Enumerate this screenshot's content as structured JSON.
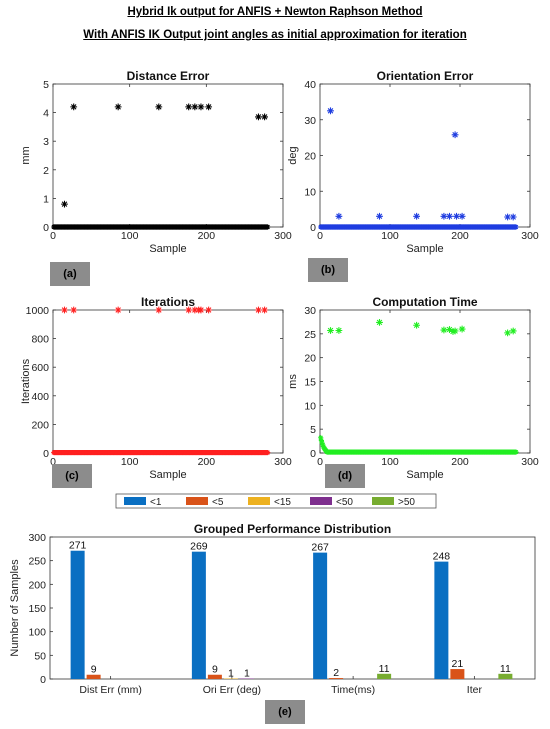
{
  "header": {
    "line1": "Hybrid Ik output for ANFIS + Newton Raphson Method",
    "line2": "With ANFIS IK Output joint angles as initial approximation for iteration"
  },
  "panel_tags": [
    "(a)",
    "(b)",
    "(c)",
    "(d)",
    "(e)"
  ],
  "chart_data": [
    {
      "type": "scatter",
      "title": "Distance Error",
      "xlabel": "Sample",
      "ylabel": "mm",
      "xlim": [
        0,
        300
      ],
      "ylim": [
        0,
        5
      ],
      "xticks": [
        0,
        100,
        200,
        300
      ],
      "yticks": [
        0,
        1,
        2,
        3,
        4,
        5
      ],
      "color": "#000000",
      "baseline": 0.0,
      "baseline_x_range": [
        1,
        280
      ],
      "outliers": [
        [
          15,
          0.8
        ],
        [
          27,
          4.2
        ],
        [
          85,
          4.2
        ],
        [
          138,
          4.2
        ],
        [
          177,
          4.2
        ],
        [
          185,
          4.2
        ],
        [
          193,
          4.2
        ],
        [
          203,
          4.2
        ],
        [
          268,
          3.85
        ],
        [
          276,
          3.85
        ]
      ]
    },
    {
      "type": "scatter",
      "title": "Orientation Error",
      "xlabel": "Sample",
      "ylabel": "deg",
      "xlim": [
        0,
        300
      ],
      "ylim": [
        0,
        40
      ],
      "xticks": [
        0,
        100,
        200,
        300
      ],
      "yticks": [
        0,
        10,
        20,
        30,
        40
      ],
      "color": "#1f3de0",
      "baseline": 0.0,
      "baseline_x_range": [
        1,
        280
      ],
      "outliers": [
        [
          15,
          32.5
        ],
        [
          27,
          3
        ],
        [
          85,
          3
        ],
        [
          138,
          3
        ],
        [
          177,
          3
        ],
        [
          185,
          3
        ],
        [
          193,
          25.8
        ],
        [
          195,
          3
        ],
        [
          203,
          3
        ],
        [
          268,
          2.8
        ],
        [
          276,
          2.8
        ]
      ]
    },
    {
      "type": "scatter",
      "title": "Iterations",
      "xlabel": "Sample",
      "ylabel": "Iterations",
      "xlim": [
        0,
        300
      ],
      "ylim": [
        0,
        1000
      ],
      "xticks": [
        0,
        100,
        200,
        300
      ],
      "yticks": [
        0,
        200,
        400,
        600,
        800,
        1000
      ],
      "color": "#ff2020",
      "baseline": 3,
      "baseline_x_range": [
        1,
        280
      ],
      "outliers": [
        [
          15,
          1000
        ],
        [
          27,
          1000
        ],
        [
          85,
          1000
        ],
        [
          138,
          1000
        ],
        [
          177,
          1000
        ],
        [
          185,
          1000
        ],
        [
          190,
          1000
        ],
        [
          193,
          1000
        ],
        [
          203,
          1000
        ],
        [
          268,
          1000
        ],
        [
          276,
          1000
        ]
      ]
    },
    {
      "type": "scatter",
      "title": "Computation Time",
      "xlabel": "Sample",
      "ylabel": "ms",
      "xlim": [
        0,
        300
      ],
      "ylim": [
        0,
        30
      ],
      "xticks": [
        0,
        100,
        200,
        300
      ],
      "yticks": [
        0,
        5,
        10,
        15,
        20,
        25,
        30
      ],
      "color": "#22ee22",
      "baseline": 0.2,
      "baseline_x_range": [
        10,
        280
      ],
      "startup": [
        [
          1,
          3.2
        ],
        [
          2,
          2.6
        ],
        [
          3,
          2.1
        ],
        [
          4,
          1.7
        ],
        [
          5,
          1.3
        ],
        [
          6,
          1.0
        ],
        [
          7,
          0.8
        ],
        [
          8,
          0.6
        ],
        [
          9,
          0.4
        ]
      ],
      "outliers": [
        [
          15,
          25.7
        ],
        [
          27,
          25.7
        ],
        [
          85,
          27.4
        ],
        [
          138,
          26.8
        ],
        [
          177,
          25.8
        ],
        [
          185,
          25.9
        ],
        [
          190,
          25.5
        ],
        [
          193,
          25.6
        ],
        [
          203,
          26.0
        ],
        [
          268,
          25.2
        ],
        [
          276,
          25.6
        ]
      ]
    },
    {
      "type": "bar",
      "title": "Grouped Performance Distribution",
      "xlabel": "",
      "ylabel": "Number of Samples",
      "categories": [
        "Dist Err (mm)",
        "Ori Err (deg)",
        "Time(ms)",
        "Iter"
      ],
      "ylim": [
        0,
        300
      ],
      "yticks": [
        0,
        50,
        100,
        150,
        200,
        250,
        300
      ],
      "series": [
        {
          "name": "<1",
          "color": "#0a6fc2",
          "values": [
            271,
            269,
            267,
            248
          ]
        },
        {
          "name": "<5",
          "color": "#d95319",
          "values": [
            9,
            9,
            2,
            21
          ]
        },
        {
          "name": "<15",
          "color": "#edb120",
          "values": [
            0,
            1,
            0,
            0
          ]
        },
        {
          "name": "<50",
          "color": "#7e2f8e",
          "values": [
            0,
            1,
            0,
            0
          ]
        },
        {
          "name": ">50",
          "color": "#77ac30",
          "values": [
            0,
            0,
            11,
            11
          ]
        }
      ],
      "labels": [
        [
          "271",
          "9",
          "",
          "",
          ""
        ],
        [
          "269",
          "9",
          "1",
          "1",
          ""
        ],
        [
          "267",
          "2",
          "",
          "",
          "11"
        ],
        [
          "248",
          "21",
          "",
          "",
          "11"
        ]
      ],
      "legend": "top-center"
    }
  ]
}
